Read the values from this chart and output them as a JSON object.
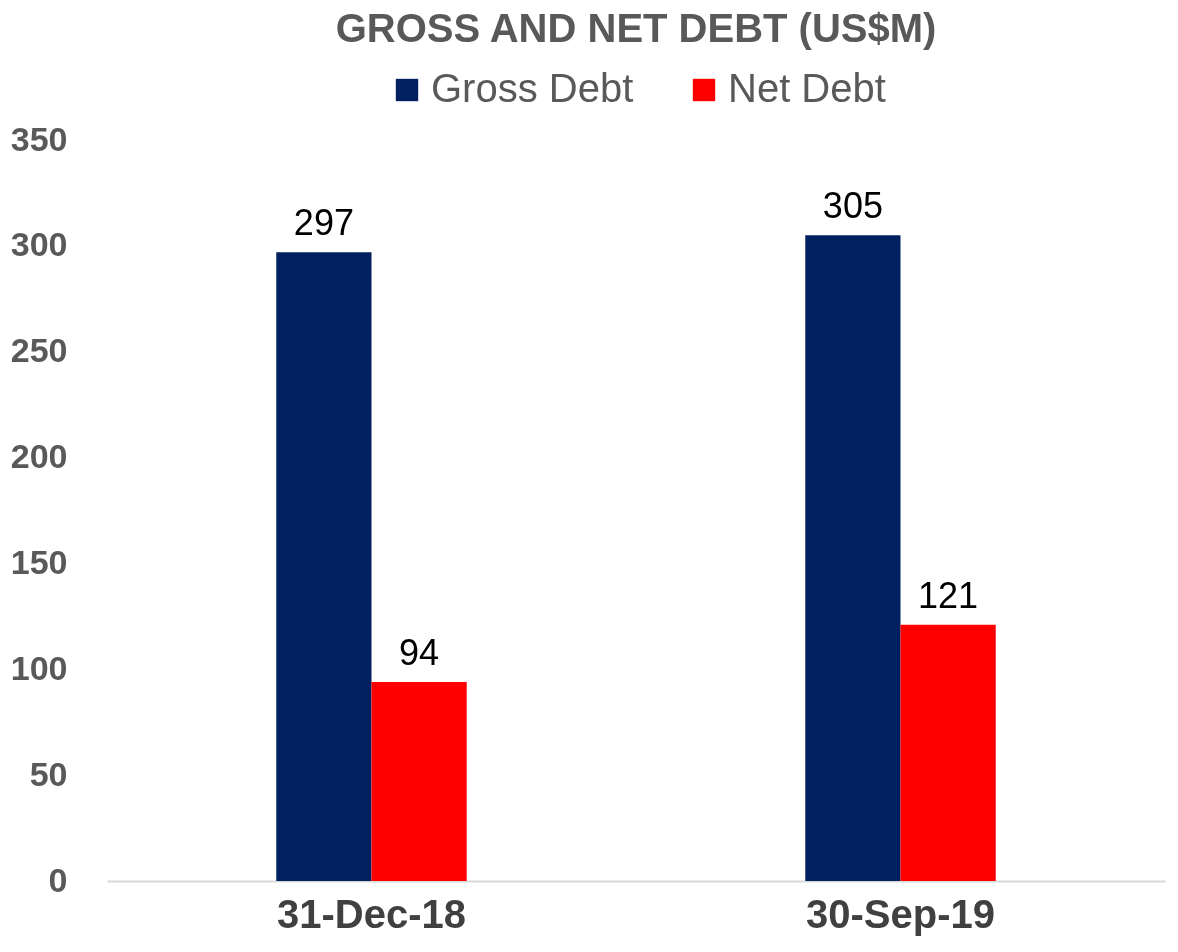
{
  "chart_data": {
    "type": "bar",
    "title": "GROSS AND NET DEBT (US$M)",
    "categories": [
      "31-Dec-18",
      "30-Sep-19"
    ],
    "series": [
      {
        "name": "Gross Debt",
        "color": "#002060",
        "values": [
          297,
          305
        ]
      },
      {
        "name": "Net Debt",
        "color": "#ff0000",
        "values": [
          94,
          121
        ]
      }
    ],
    "ylim": [
      0,
      350
    ],
    "yticks": [
      0,
      50,
      100,
      150,
      200,
      250,
      300,
      350
    ],
    "grid": false,
    "legend": "top",
    "data_labels": true
  }
}
